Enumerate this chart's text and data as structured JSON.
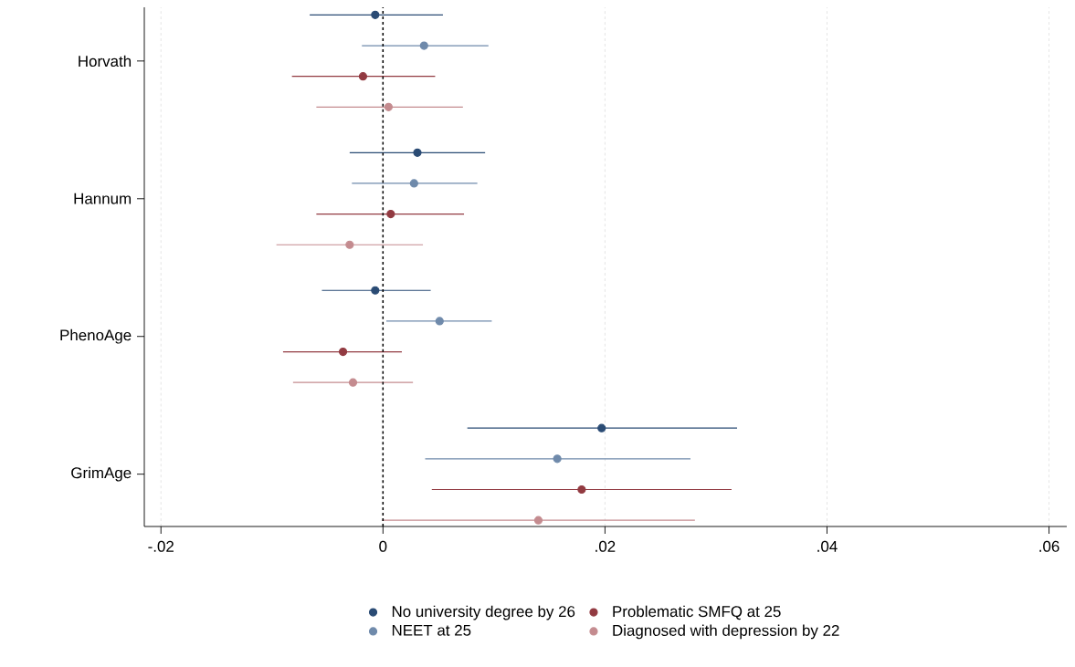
{
  "chart_data": {
    "type": "scatter",
    "orientation": "horizontal",
    "categories": [
      "Horvath",
      "Hannum",
      "PhenoAge",
      "GrimAge"
    ],
    "series": [
      {
        "name": "No university degree by 26",
        "color": "#2a4b74",
        "values": [
          -0.0007,
          0.0031,
          -0.0007,
          0.0197
        ],
        "errors": [
          [
            -0.0066,
            0.0054
          ],
          [
            -0.003,
            0.0092
          ],
          [
            -0.0055,
            0.0043
          ],
          [
            0.0076,
            0.0319
          ]
        ]
      },
      {
        "name": "NEET at 25",
        "color": "#6f8aab",
        "values": [
          0.0037,
          0.0028,
          0.0051,
          0.0157
        ],
        "errors": [
          [
            -0.0019,
            0.0095
          ],
          [
            -0.0028,
            0.0085
          ],
          [
            0.0003,
            0.0098
          ],
          [
            0.0038,
            0.0277
          ]
        ]
      },
      {
        "name": "Problematic SMFQ at 25",
        "color": "#923a41",
        "values": [
          -0.0018,
          0.0007,
          -0.0036,
          0.0179
        ],
        "errors": [
          [
            -0.0082,
            0.0047
          ],
          [
            -0.006,
            0.0073
          ],
          [
            -0.009,
            0.0017
          ],
          [
            0.0044,
            0.0314
          ]
        ]
      },
      {
        "name": "Diagnosed with depression by 22",
        "color": "#c48b8f",
        "values": [
          0.0005,
          -0.003,
          -0.0027,
          0.014
        ],
        "errors": [
          [
            -0.006,
            0.0072
          ],
          [
            -0.0096,
            0.0036
          ],
          [
            -0.0081,
            0.0027
          ],
          [
            -0.0001,
            0.0281
          ]
        ]
      }
    ],
    "xlim": [
      -0.0215,
      0.0616
    ],
    "xticks": [
      {
        "value": -0.02,
        "label": "-.02"
      },
      {
        "value": 0,
        "label": "0"
      },
      {
        "value": 0.02,
        "label": ".02"
      },
      {
        "value": 0.04,
        "label": ".04"
      },
      {
        "value": 0.06,
        "label": ".06"
      }
    ],
    "ref_lines": [
      {
        "axis": "x",
        "value": 0,
        "color": "#000000",
        "line_style": "dashed"
      }
    ],
    "grid": "x",
    "legend": "bottom"
  }
}
